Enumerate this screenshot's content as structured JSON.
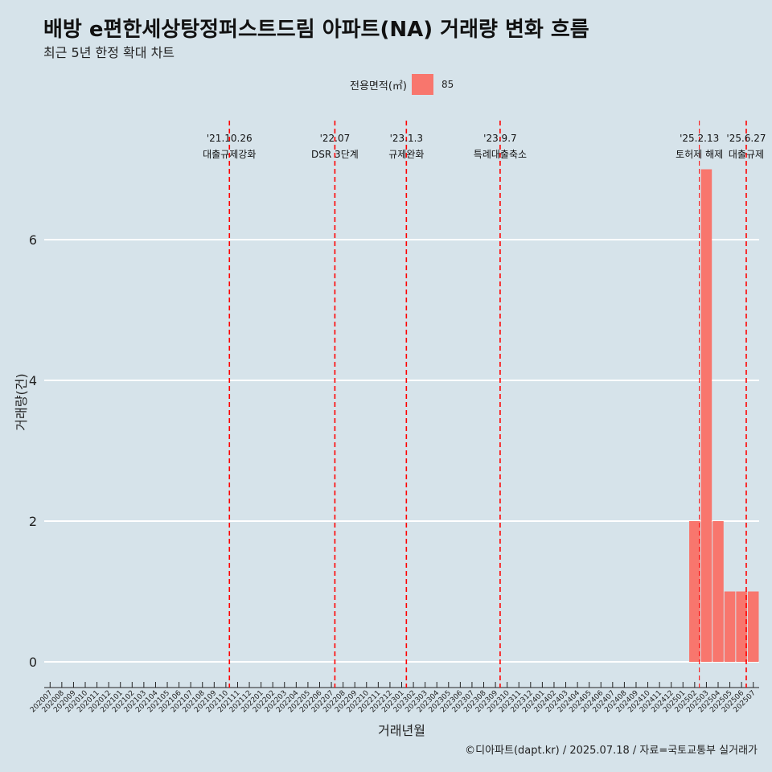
{
  "header": {
    "title": "배방 e편한세상탕정퍼스트드림 아파트(NA) 거래량 변화 흐름",
    "subtitle": "최근 5년 한정 확대 차트"
  },
  "legend": {
    "title": "전용면적(㎡)",
    "items": [
      {
        "label": "85",
        "color": "#f8766d"
      }
    ]
  },
  "caption": "©디아파트(dapt.kr) / 2025.07.18 / 자료=국토교통부 실거래가",
  "chart_data": {
    "type": "bar",
    "xlabel": "거래년월",
    "ylabel": "거래량(건)",
    "ylim": [
      0,
      7
    ],
    "yticks": [
      0,
      2,
      4,
      6
    ],
    "grid": true,
    "legend_position": "top",
    "categories": [
      "202007",
      "202008",
      "202009",
      "202010",
      "202011",
      "202012",
      "202101",
      "202102",
      "202103",
      "202104",
      "202105",
      "202106",
      "202107",
      "202108",
      "202109",
      "202110",
      "202111",
      "202112",
      "202201",
      "202202",
      "202203",
      "202204",
      "202205",
      "202206",
      "202207",
      "202208",
      "202209",
      "202210",
      "202211",
      "202212",
      "202301",
      "202302",
      "202303",
      "202304",
      "202305",
      "202306",
      "202307",
      "202308",
      "202309",
      "202310",
      "202311",
      "202312",
      "202401",
      "202402",
      "202403",
      "202404",
      "202405",
      "202406",
      "202407",
      "202408",
      "202409",
      "202410",
      "202411",
      "202412",
      "202501",
      "202502",
      "202503",
      "202504",
      "202505",
      "202506",
      "202507"
    ],
    "series": [
      {
        "name": "85",
        "color": "#f8766d",
        "values": [
          0,
          0,
          0,
          0,
          0,
          0,
          0,
          0,
          0,
          0,
          0,
          0,
          0,
          0,
          0,
          0,
          0,
          0,
          0,
          0,
          0,
          0,
          0,
          0,
          0,
          0,
          0,
          0,
          0,
          0,
          0,
          0,
          0,
          0,
          0,
          0,
          0,
          0,
          0,
          0,
          0,
          0,
          0,
          0,
          0,
          0,
          0,
          0,
          0,
          0,
          0,
          0,
          0,
          0,
          0,
          2,
          7,
          2,
          1,
          1,
          1
        ]
      }
    ],
    "annotations": [
      {
        "date": "'21.10.26",
        "label": "대출규제강화",
        "x": 15.3,
        "style": "dashed"
      },
      {
        "date": "'22.07",
        "label": "DSR 3단계",
        "x": 24.3,
        "style": "dashed"
      },
      {
        "date": "'23.1.3",
        "label": "규제완화",
        "x": 30.4,
        "style": "dashed"
      },
      {
        "date": "'23.9.7",
        "label": "특례대출축소",
        "x": 38.4,
        "style": "dashed"
      },
      {
        "date": "'25.2.13",
        "label": "토허제 해제",
        "x": 55.4,
        "style": "dashed-thin"
      },
      {
        "date": "'25.6.27",
        "label": "대출규제",
        "x": 59.4,
        "style": "dashed"
      }
    ]
  }
}
